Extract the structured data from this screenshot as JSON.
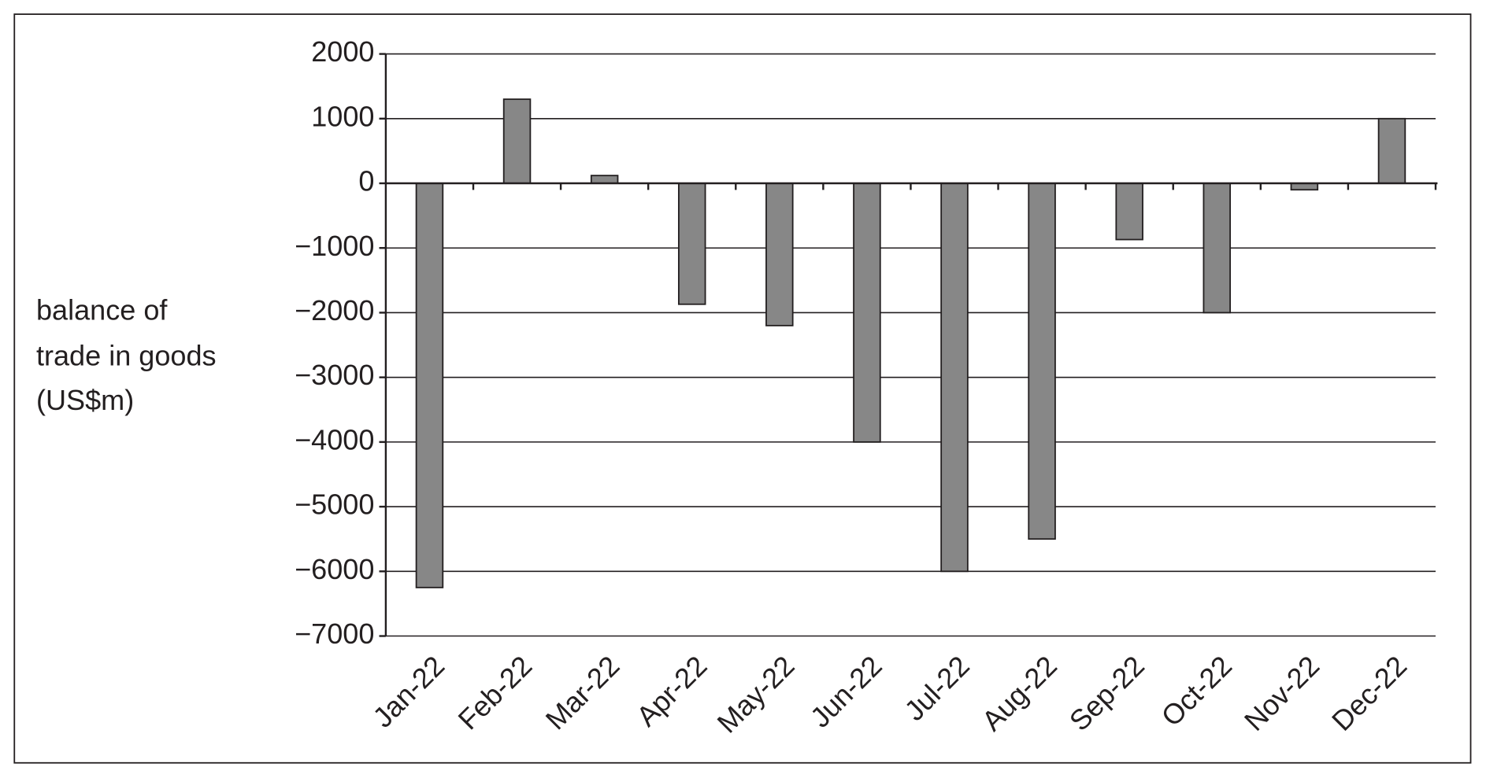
{
  "chart_data": {
    "type": "bar",
    "ylabel": [
      "balance of",
      "trade in goods",
      "(US$m)"
    ],
    "categories": [
      "Jan-22",
      "Feb-22",
      "Mar-22",
      "Apr-22",
      "May-22",
      "Jun-22",
      "Jul-22",
      "Aug-22",
      "Sep-22",
      "Oct-22",
      "Nov-22",
      "Dec-22"
    ],
    "values": [
      -6250,
      1300,
      120,
      -1870,
      -2200,
      -4000,
      -6000,
      -5500,
      -870,
      -2000,
      -100,
      1000
    ],
    "color": "#878787",
    "ylim": [
      -7000,
      2000
    ],
    "yticks": [
      2000,
      1000,
      0,
      {
        "value": -1000,
        "label": "−1000"
      },
      {
        "value": -2000,
        "label": "−2000"
      },
      {
        "value": -3000,
        "label": "−3000"
      },
      {
        "value": -4000,
        "label": "−4000"
      },
      {
        "value": -5000,
        "label": "−5000"
      },
      {
        "value": -6000,
        "label": "−6000"
      },
      {
        "value": -7000,
        "label": "−7000"
      }
    ],
    "grid": true
  }
}
